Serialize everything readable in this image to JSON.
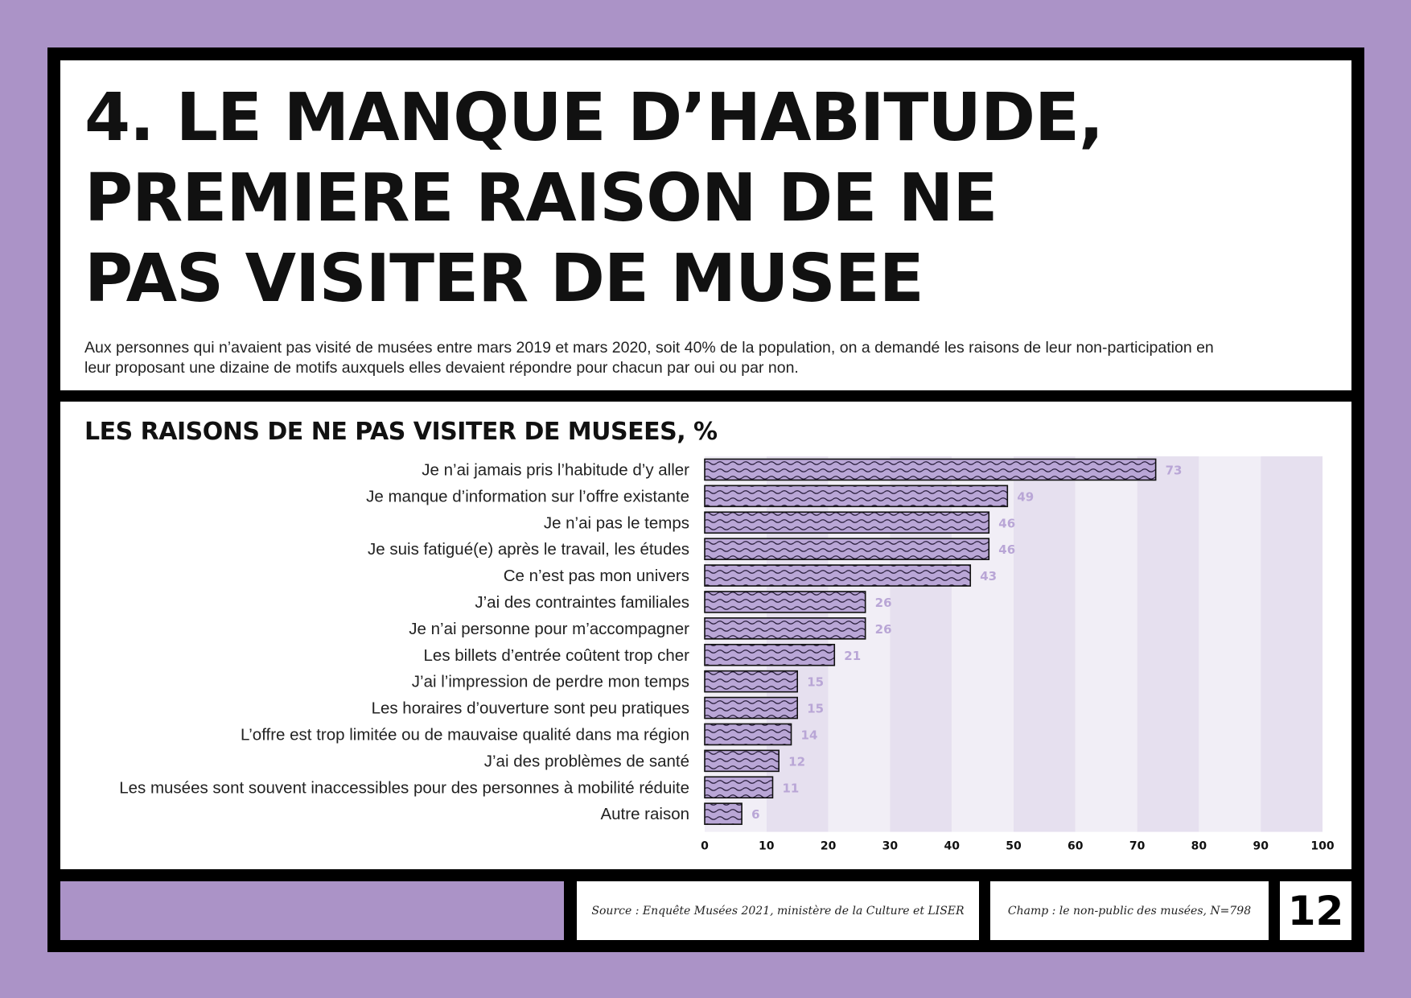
{
  "header": {
    "title": "4. LE MANQUE D’HABITUDE,\nPREMIERE RAISON DE NE\nPAS VISITER DE MUSEE",
    "intro": "Aux personnes qui n’avaient pas visité de musées entre mars 2019 et mars 2020, soit 40% de la population, on a demandé les raisons de leur non-participation en leur proposant une dizaine de motifs auxquels elles devaient répondre pour chacun par oui ou par non."
  },
  "footer": {
    "source": "Source : Enquête Musées 2021, ministère de la Culture et LISER",
    "scope": "Champ : le non-public des musées, N=798",
    "page_number": "12"
  },
  "colors": {
    "background": "#ab93c7",
    "bar_fill": "#b9a6d6",
    "value_label": "#b9a6d6",
    "band_light": "#f1eef6",
    "band_dark": "#e6e0ef"
  },
  "chart_data": {
    "type": "bar",
    "orientation": "horizontal",
    "title": "LES RAISONS DE NE PAS VISITER DE MUSEES, %",
    "categories": [
      "Je n’ai jamais pris l’habitude d’y aller",
      "Je manque d’information sur l’offre existante",
      "Je n’ai pas le temps",
      "Je suis fatigué(e) après le travail, les études",
      "Ce n’est pas mon univers",
      "J’ai des contraintes familiales",
      "Je n’ai personne pour m’accompagner",
      "Les billets d’entrée coûtent trop cher",
      "J’ai l’impression de perdre mon temps",
      "Les horaires d’ouverture sont peu pratiques",
      "L’offre est trop limitée ou de mauvaise qualité dans ma région",
      "J’ai des problèmes de santé",
      "Les musées sont souvent inaccessibles pour des personnes à mobilité réduite",
      "Autre raison"
    ],
    "values": [
      73,
      49,
      46,
      46,
      43,
      26,
      26,
      21,
      15,
      15,
      14,
      12,
      11,
      6
    ],
    "xlim": [
      0,
      100
    ],
    "xticks": [
      0,
      10,
      20,
      30,
      40,
      50,
      60,
      70,
      80,
      90,
      100
    ],
    "grid": "alternating vertical bands",
    "legend": "none"
  }
}
